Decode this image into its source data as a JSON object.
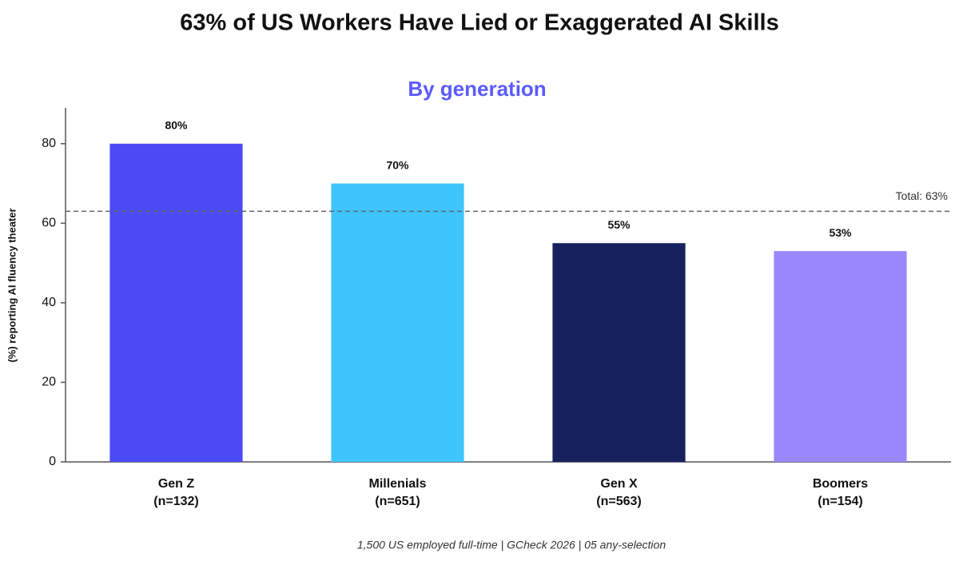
{
  "chart_data": {
    "type": "bar",
    "title": "63% of US Workers Have Lied or Exaggerated AI Skills",
    "subtitle": "By generation",
    "ylabel": "(%) reporting AI fluency theater",
    "footnote": "1,500 US employed full-time | GCheck 2026 | 05 any-selection",
    "categories": [
      "Gen Z",
      "Millenials",
      "Gen X",
      "Boomers"
    ],
    "category_sublabels": [
      "(n=132)",
      "(n=651)",
      "(n=563)",
      "(n=154)"
    ],
    "values": [
      80,
      70,
      55,
      53
    ],
    "value_labels": [
      "80%",
      "70%",
      "55%",
      "53%"
    ],
    "colors": [
      "#4b4bf5",
      "#3ec5fd",
      "#16215e",
      "#9b87fc"
    ],
    "reference_line": {
      "value": 63,
      "label": "Total: 63%"
    },
    "ylim": [
      0,
      89
    ],
    "yticks": [
      0,
      20,
      40,
      60,
      80
    ]
  }
}
